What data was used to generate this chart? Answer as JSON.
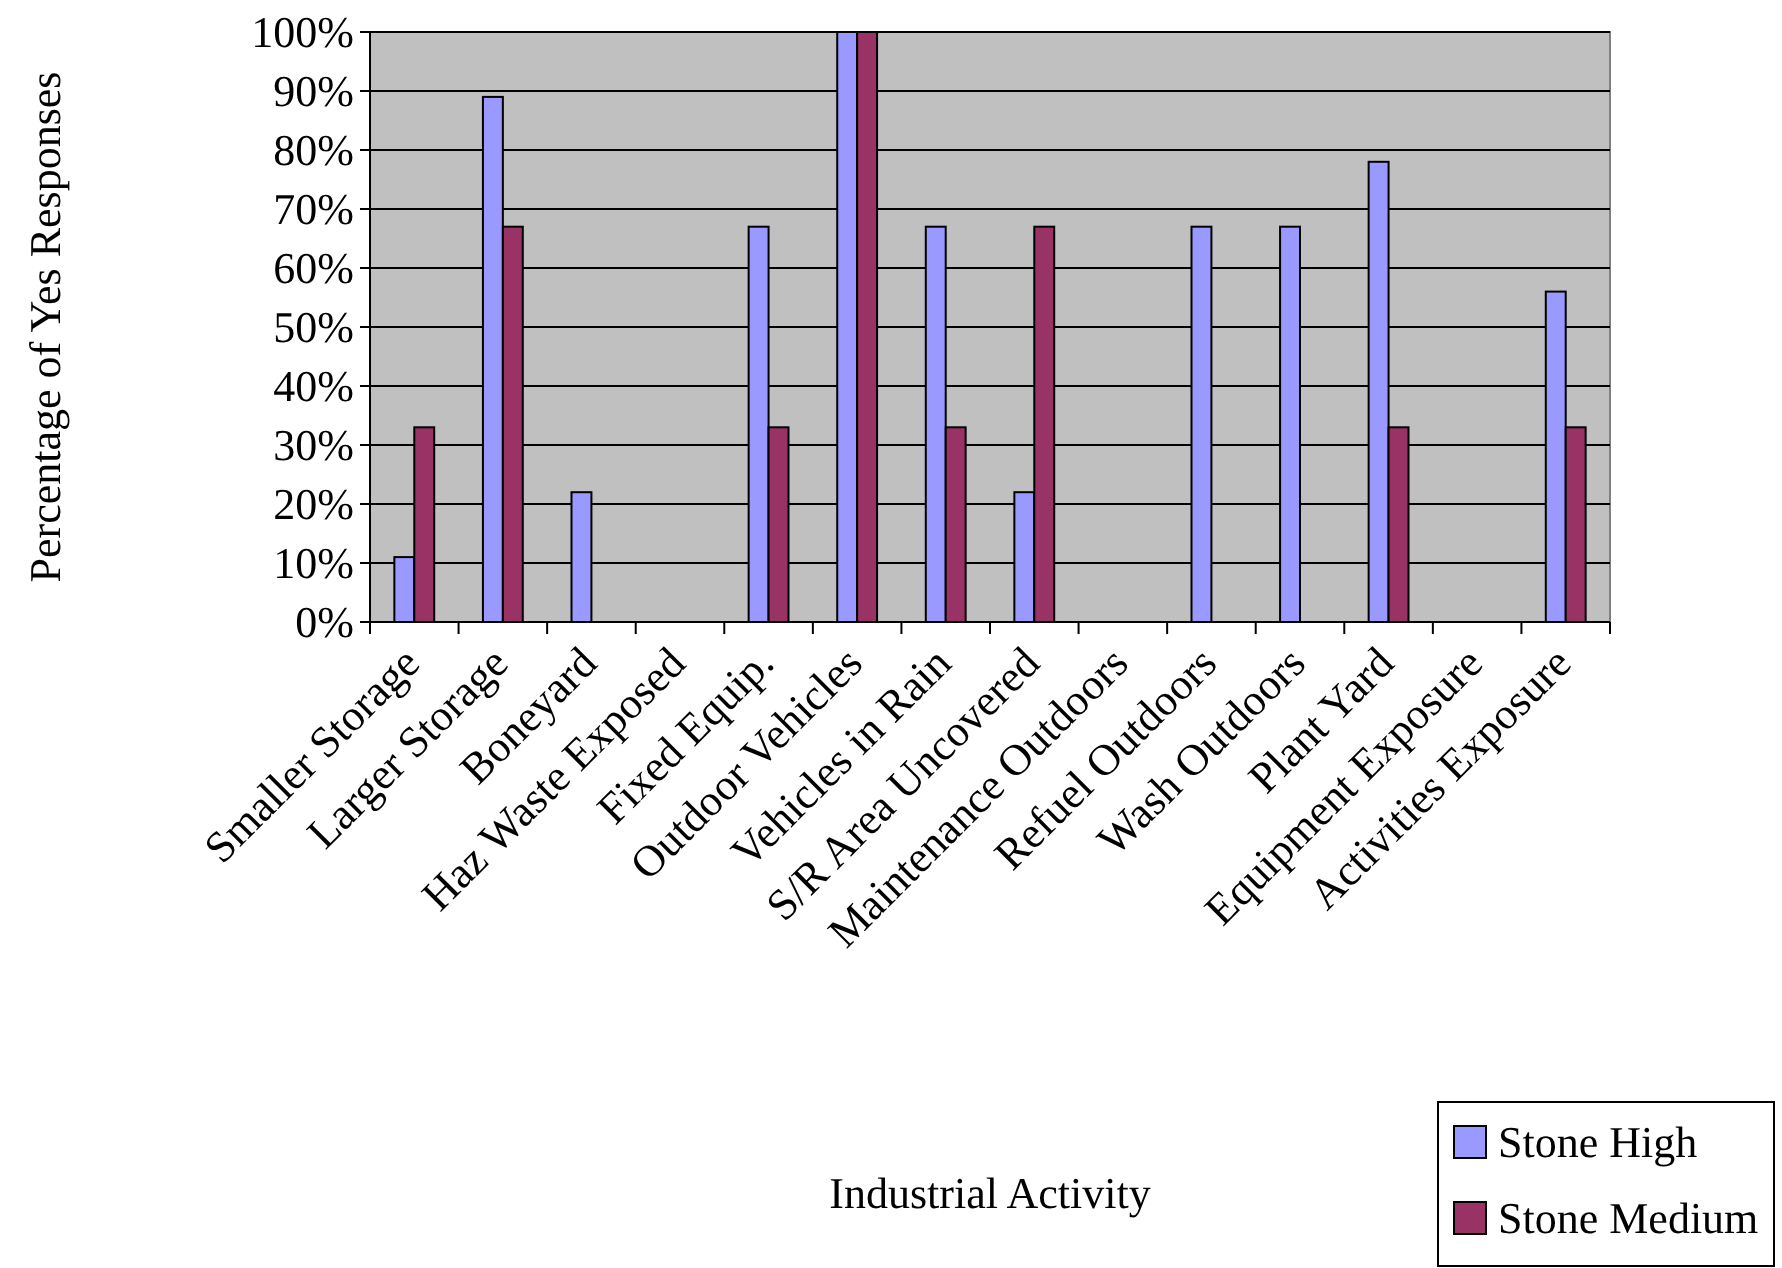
{
  "chart_data": {
    "type": "bar",
    "xlabel": "Industrial Activity",
    "ylabel": "Percentage of Yes Responses",
    "categories": [
      "Smaller Storage",
      "Larger Storage",
      "Boneyard",
      "Haz Waste Exposed",
      "Fixed Equip.",
      "Outdoor Vehicles",
      "Vehicles in Rain",
      "S/R Area Uncovered",
      "Maintenance Outdoors",
      "Refuel Outdoors",
      "Wash Outdoors",
      "Plant Yard",
      "Equipment Exposure",
      "Activities Exposure"
    ],
    "series": [
      {
        "name": "Stone High",
        "color": "#9999ff",
        "values": [
          11,
          89,
          22,
          0,
          67,
          100,
          67,
          22,
          0,
          67,
          67,
          78,
          0,
          56
        ]
      },
      {
        "name": "Stone Medium",
        "color": "#993366",
        "values": [
          33,
          67,
          0,
          0,
          33,
          100,
          33,
          67,
          0,
          0,
          0,
          33,
          0,
          33
        ]
      }
    ],
    "ylim": [
      0,
      100
    ],
    "yticks": [
      {
        "value": 0,
        "label": "0%"
      },
      {
        "value": 10,
        "label": "10%"
      },
      {
        "value": 20,
        "label": "20%"
      },
      {
        "value": 30,
        "label": "30%"
      },
      {
        "value": 40,
        "label": "40%"
      },
      {
        "value": 50,
        "label": "50%"
      },
      {
        "value": 60,
        "label": "60%"
      },
      {
        "value": 70,
        "label": "70%"
      },
      {
        "value": 80,
        "label": "80%"
      },
      {
        "value": 90,
        "label": "90%"
      },
      {
        "value": 100,
        "label": "100%"
      }
    ],
    "grid": "y",
    "legend": "bottom right"
  }
}
